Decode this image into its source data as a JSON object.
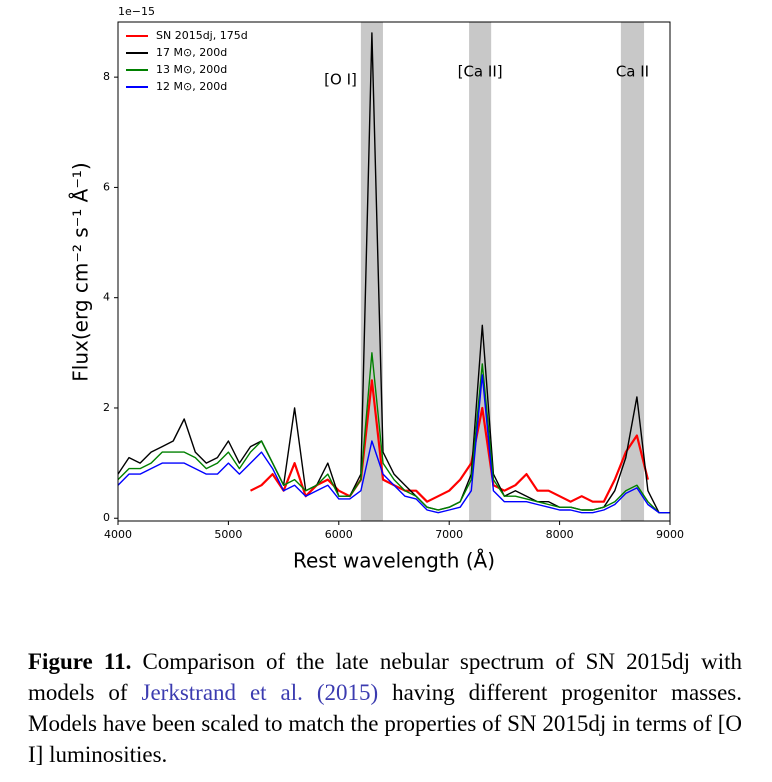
{
  "chart_data": {
    "type": "line",
    "y_offset_label": "1e−15",
    "x_label": "Rest wavelength (Å)",
    "y_label": "Flux(erg cm⁻² s⁻¹ Å⁻¹)",
    "xlim": [
      4000,
      9000
    ],
    "ylim": [
      -0.05,
      9.0
    ],
    "xticks": [
      4000,
      5000,
      6000,
      7000,
      8000,
      9000
    ],
    "yticks": [
      0,
      2,
      4,
      6,
      8
    ],
    "legend_position": "upper left",
    "bands": [
      {
        "label": "[O I]",
        "range": [
          6200,
          6400
        ],
        "color": "#c8c8c8"
      },
      {
        "label": "[Ca II]",
        "range": [
          7180,
          7380
        ],
        "color": "#c8c8c8"
      },
      {
        "label": "Ca II",
        "range": [
          8555,
          8765
        ],
        "color": "#c8c8c8"
      }
    ],
    "x": [
      4000,
      4100,
      4200,
      4300,
      4400,
      4500,
      4600,
      4700,
      4800,
      4900,
      5000,
      5100,
      5200,
      5300,
      5400,
      5500,
      5600,
      5700,
      5800,
      5900,
      6000,
      6100,
      6200,
      6300,
      6400,
      6500,
      6600,
      6700,
      6800,
      6900,
      7000,
      7100,
      7200,
      7300,
      7400,
      7500,
      7600,
      7700,
      7800,
      7900,
      8000,
      8100,
      8200,
      8300,
      8400,
      8500,
      8600,
      8700,
      8800,
      8900,
      9000
    ],
    "series": [
      {
        "name": "SN 2015dj, 175d",
        "color": "#ff0000",
        "values": [
          null,
          null,
          null,
          null,
          null,
          null,
          null,
          null,
          null,
          null,
          null,
          null,
          0.5,
          0.6,
          0.8,
          0.5,
          1.0,
          0.4,
          0.6,
          0.7,
          0.5,
          0.4,
          0.7,
          2.5,
          0.7,
          0.6,
          0.5,
          0.5,
          0.3,
          0.4,
          0.5,
          0.7,
          1.0,
          2.0,
          0.6,
          0.5,
          0.6,
          0.8,
          0.5,
          0.5,
          0.4,
          0.3,
          0.4,
          0.3,
          0.3,
          0.7,
          1.2,
          1.5,
          0.7,
          null,
          null
        ]
      },
      {
        "name": "17 M⊙, 200d",
        "color": "#000000",
        "values": [
          0.8,
          1.1,
          1.0,
          1.2,
          1.3,
          1.4,
          1.8,
          1.2,
          1.0,
          1.1,
          1.4,
          1.0,
          1.3,
          1.4,
          1.0,
          0.6,
          2.0,
          0.5,
          0.6,
          1.0,
          0.4,
          0.4,
          0.8,
          8.8,
          1.2,
          0.8,
          0.6,
          0.4,
          0.2,
          0.15,
          0.2,
          0.3,
          0.8,
          3.5,
          0.8,
          0.4,
          0.5,
          0.4,
          0.3,
          0.3,
          0.2,
          0.2,
          0.15,
          0.15,
          0.2,
          0.5,
          1.1,
          2.2,
          0.5,
          0.1,
          0.1
        ]
      },
      {
        "name": "13 M⊙, 200d",
        "color": "#008000",
        "values": [
          0.7,
          0.9,
          0.9,
          1.0,
          1.2,
          1.2,
          1.2,
          1.1,
          0.9,
          1.0,
          1.2,
          0.9,
          1.2,
          1.4,
          1.0,
          0.6,
          0.7,
          0.5,
          0.6,
          0.8,
          0.4,
          0.4,
          0.7,
          3.0,
          1.0,
          0.7,
          0.5,
          0.4,
          0.2,
          0.15,
          0.2,
          0.3,
          0.7,
          2.8,
          0.7,
          0.4,
          0.4,
          0.35,
          0.3,
          0.25,
          0.2,
          0.2,
          0.15,
          0.15,
          0.2,
          0.3,
          0.5,
          0.6,
          0.3,
          0.1,
          0.1
        ]
      },
      {
        "name": "12 M⊙, 200d",
        "color": "#0000ff",
        "values": [
          0.6,
          0.8,
          0.8,
          0.9,
          1.0,
          1.0,
          1.0,
          0.9,
          0.8,
          0.8,
          1.0,
          0.8,
          1.0,
          1.2,
          0.9,
          0.5,
          0.6,
          0.4,
          0.5,
          0.6,
          0.35,
          0.35,
          0.5,
          1.4,
          0.8,
          0.6,
          0.4,
          0.35,
          0.15,
          0.1,
          0.15,
          0.2,
          0.5,
          2.6,
          0.5,
          0.3,
          0.3,
          0.3,
          0.25,
          0.2,
          0.15,
          0.15,
          0.1,
          0.1,
          0.15,
          0.25,
          0.45,
          0.55,
          0.25,
          0.1,
          0.1
        ]
      }
    ]
  },
  "caption": {
    "label": "Figure 11.",
    "text_before": "Comparison of the late nebular spectrum of SN 2015dj with models of",
    "citation": "Jerkstrand et al. (2015)",
    "text_after": "having different progenitor masses. Models have been scaled to match the properties of SN 2015dj in terms of [O I] luminosities."
  }
}
